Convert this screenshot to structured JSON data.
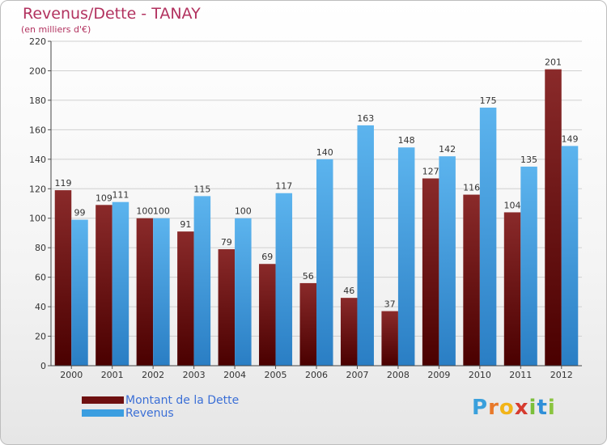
{
  "title": "Revenus/Dette - TANAY",
  "subtitle": "(en milliers d'€)",
  "logo": {
    "letters": [
      "P",
      "r",
      "o",
      "x",
      "i",
      "t",
      "i"
    ],
    "colors": [
      "#3aa0dc",
      "#e8792a",
      "#f2b418",
      "#d63b2f",
      "#7bbf3a",
      "#2f8fd8",
      "#8ac43f"
    ]
  },
  "legend": [
    {
      "label": "Montant de la Dette",
      "color": "#6e1010"
    },
    {
      "label": "Revenus",
      "color": "#3b9ee0"
    }
  ],
  "chart_data": {
    "type": "bar",
    "categories": [
      "2000",
      "2001",
      "2002",
      "2003",
      "2004",
      "2005",
      "2006",
      "2007",
      "2008",
      "2009",
      "2010",
      "2011",
      "2012"
    ],
    "series": [
      {
        "name": "Montant de la Dette",
        "values": [
          119,
          109,
          100,
          91,
          79,
          69,
          56,
          46,
          37,
          127,
          116,
          104,
          201
        ],
        "color": "#7a1a1a"
      },
      {
        "name": "Revenus",
        "values": [
          99,
          111,
          100,
          115,
          100,
          117,
          140,
          163,
          148,
          142,
          175,
          135,
          149
        ],
        "color": "#3b9ee0"
      }
    ],
    "ylim": [
      0,
      220
    ],
    "yticks": [
      0,
      20,
      40,
      60,
      80,
      100,
      120,
      140,
      160,
      180,
      200,
      220
    ],
    "grid": true,
    "legend_position": "bottom-left"
  }
}
